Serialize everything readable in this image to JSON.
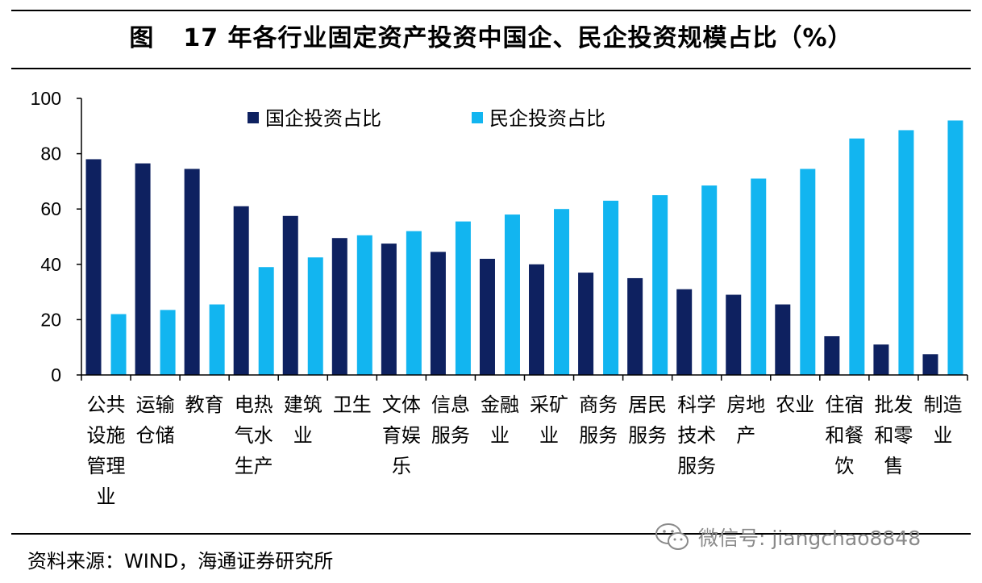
{
  "title": {
    "figure_label": "图",
    "text": "17 年各行业固定资产投资中国企、民企投资规模占比（%）"
  },
  "source": "资料来源：WIND，海通证券研究所",
  "watermark": {
    "text": "微信号: jiangchao8848",
    "icon": "wechat-icon"
  },
  "colors": {
    "soe": "#0E2160",
    "private": "#12B5F0"
  },
  "chart_data": {
    "type": "bar",
    "title": "17 年各行业固定资产投资中国企、民企投资规模占比（%）",
    "xlabel": "",
    "ylabel": "",
    "ylim": [
      0,
      100
    ],
    "yticks": [
      0,
      20,
      40,
      60,
      80,
      100
    ],
    "grid": false,
    "legend_position": "top-left",
    "categories": [
      [
        "公共",
        "设施",
        "管理",
        "业"
      ],
      [
        "运输",
        "仓储"
      ],
      [
        "教育"
      ],
      [
        "电热",
        "气水",
        "生产"
      ],
      [
        "建筑",
        "业"
      ],
      [
        "卫生"
      ],
      [
        "文体",
        "育娱",
        "乐"
      ],
      [
        "信息",
        "服务"
      ],
      [
        "金融",
        "业"
      ],
      [
        "采矿",
        "业"
      ],
      [
        "商务",
        "服务"
      ],
      [
        "居民",
        "服务"
      ],
      [
        "科学",
        "技术",
        "服务"
      ],
      [
        "房地",
        "产"
      ],
      [
        "农业"
      ],
      [
        "住宿",
        "和餐",
        "饮"
      ],
      [
        "批发",
        "和零",
        "售"
      ],
      [
        "制造",
        "业"
      ]
    ],
    "series": [
      {
        "name": "国企投资占比",
        "values": [
          78,
          76.5,
          74.5,
          61,
          57.5,
          49.5,
          47.5,
          44.5,
          42,
          40,
          37,
          35,
          31,
          29,
          25.5,
          14,
          11,
          7.5
        ]
      },
      {
        "name": "民企投资占比",
        "values": [
          22,
          23.5,
          25.5,
          39,
          42.5,
          50.5,
          52,
          55.5,
          58,
          60,
          63,
          65,
          68.5,
          71,
          74.5,
          85.5,
          88.5,
          92
        ]
      }
    ]
  }
}
